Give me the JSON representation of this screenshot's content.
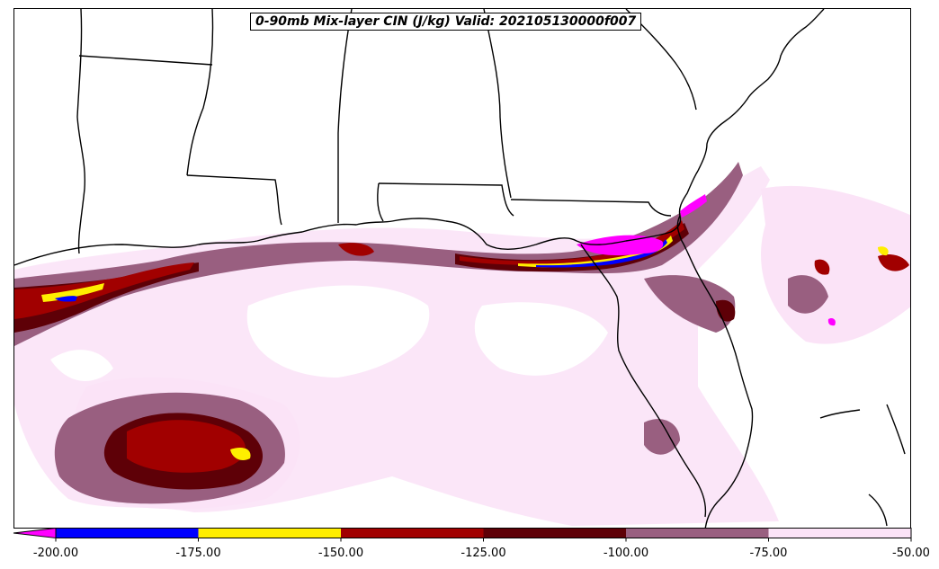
{
  "title": "0-90mb Mix-layer CIN (J/kg) Valid: 202105130000f007",
  "colorbar": {
    "ticks": [
      "-200.00",
      "-175.00",
      "-150.00",
      "-125.00",
      "-100.00",
      "-75.00",
      "-50.00"
    ],
    "bins": [
      {
        "from": -225,
        "to": -200,
        "color": "#ff00ff"
      },
      {
        "from": -200,
        "to": -175,
        "color": "#0000ff"
      },
      {
        "from": -175,
        "to": -150,
        "color": "#ffee00"
      },
      {
        "from": -150,
        "to": -125,
        "color": "#a10000"
      },
      {
        "from": -125,
        "to": -100,
        "color": "#5e0007"
      },
      {
        "from": -100,
        "to": -75,
        "color": "#995f80"
      },
      {
        "from": -75,
        "to": -50,
        "color": "#fbe3f7"
      }
    ],
    "extend": "min"
  }
}
